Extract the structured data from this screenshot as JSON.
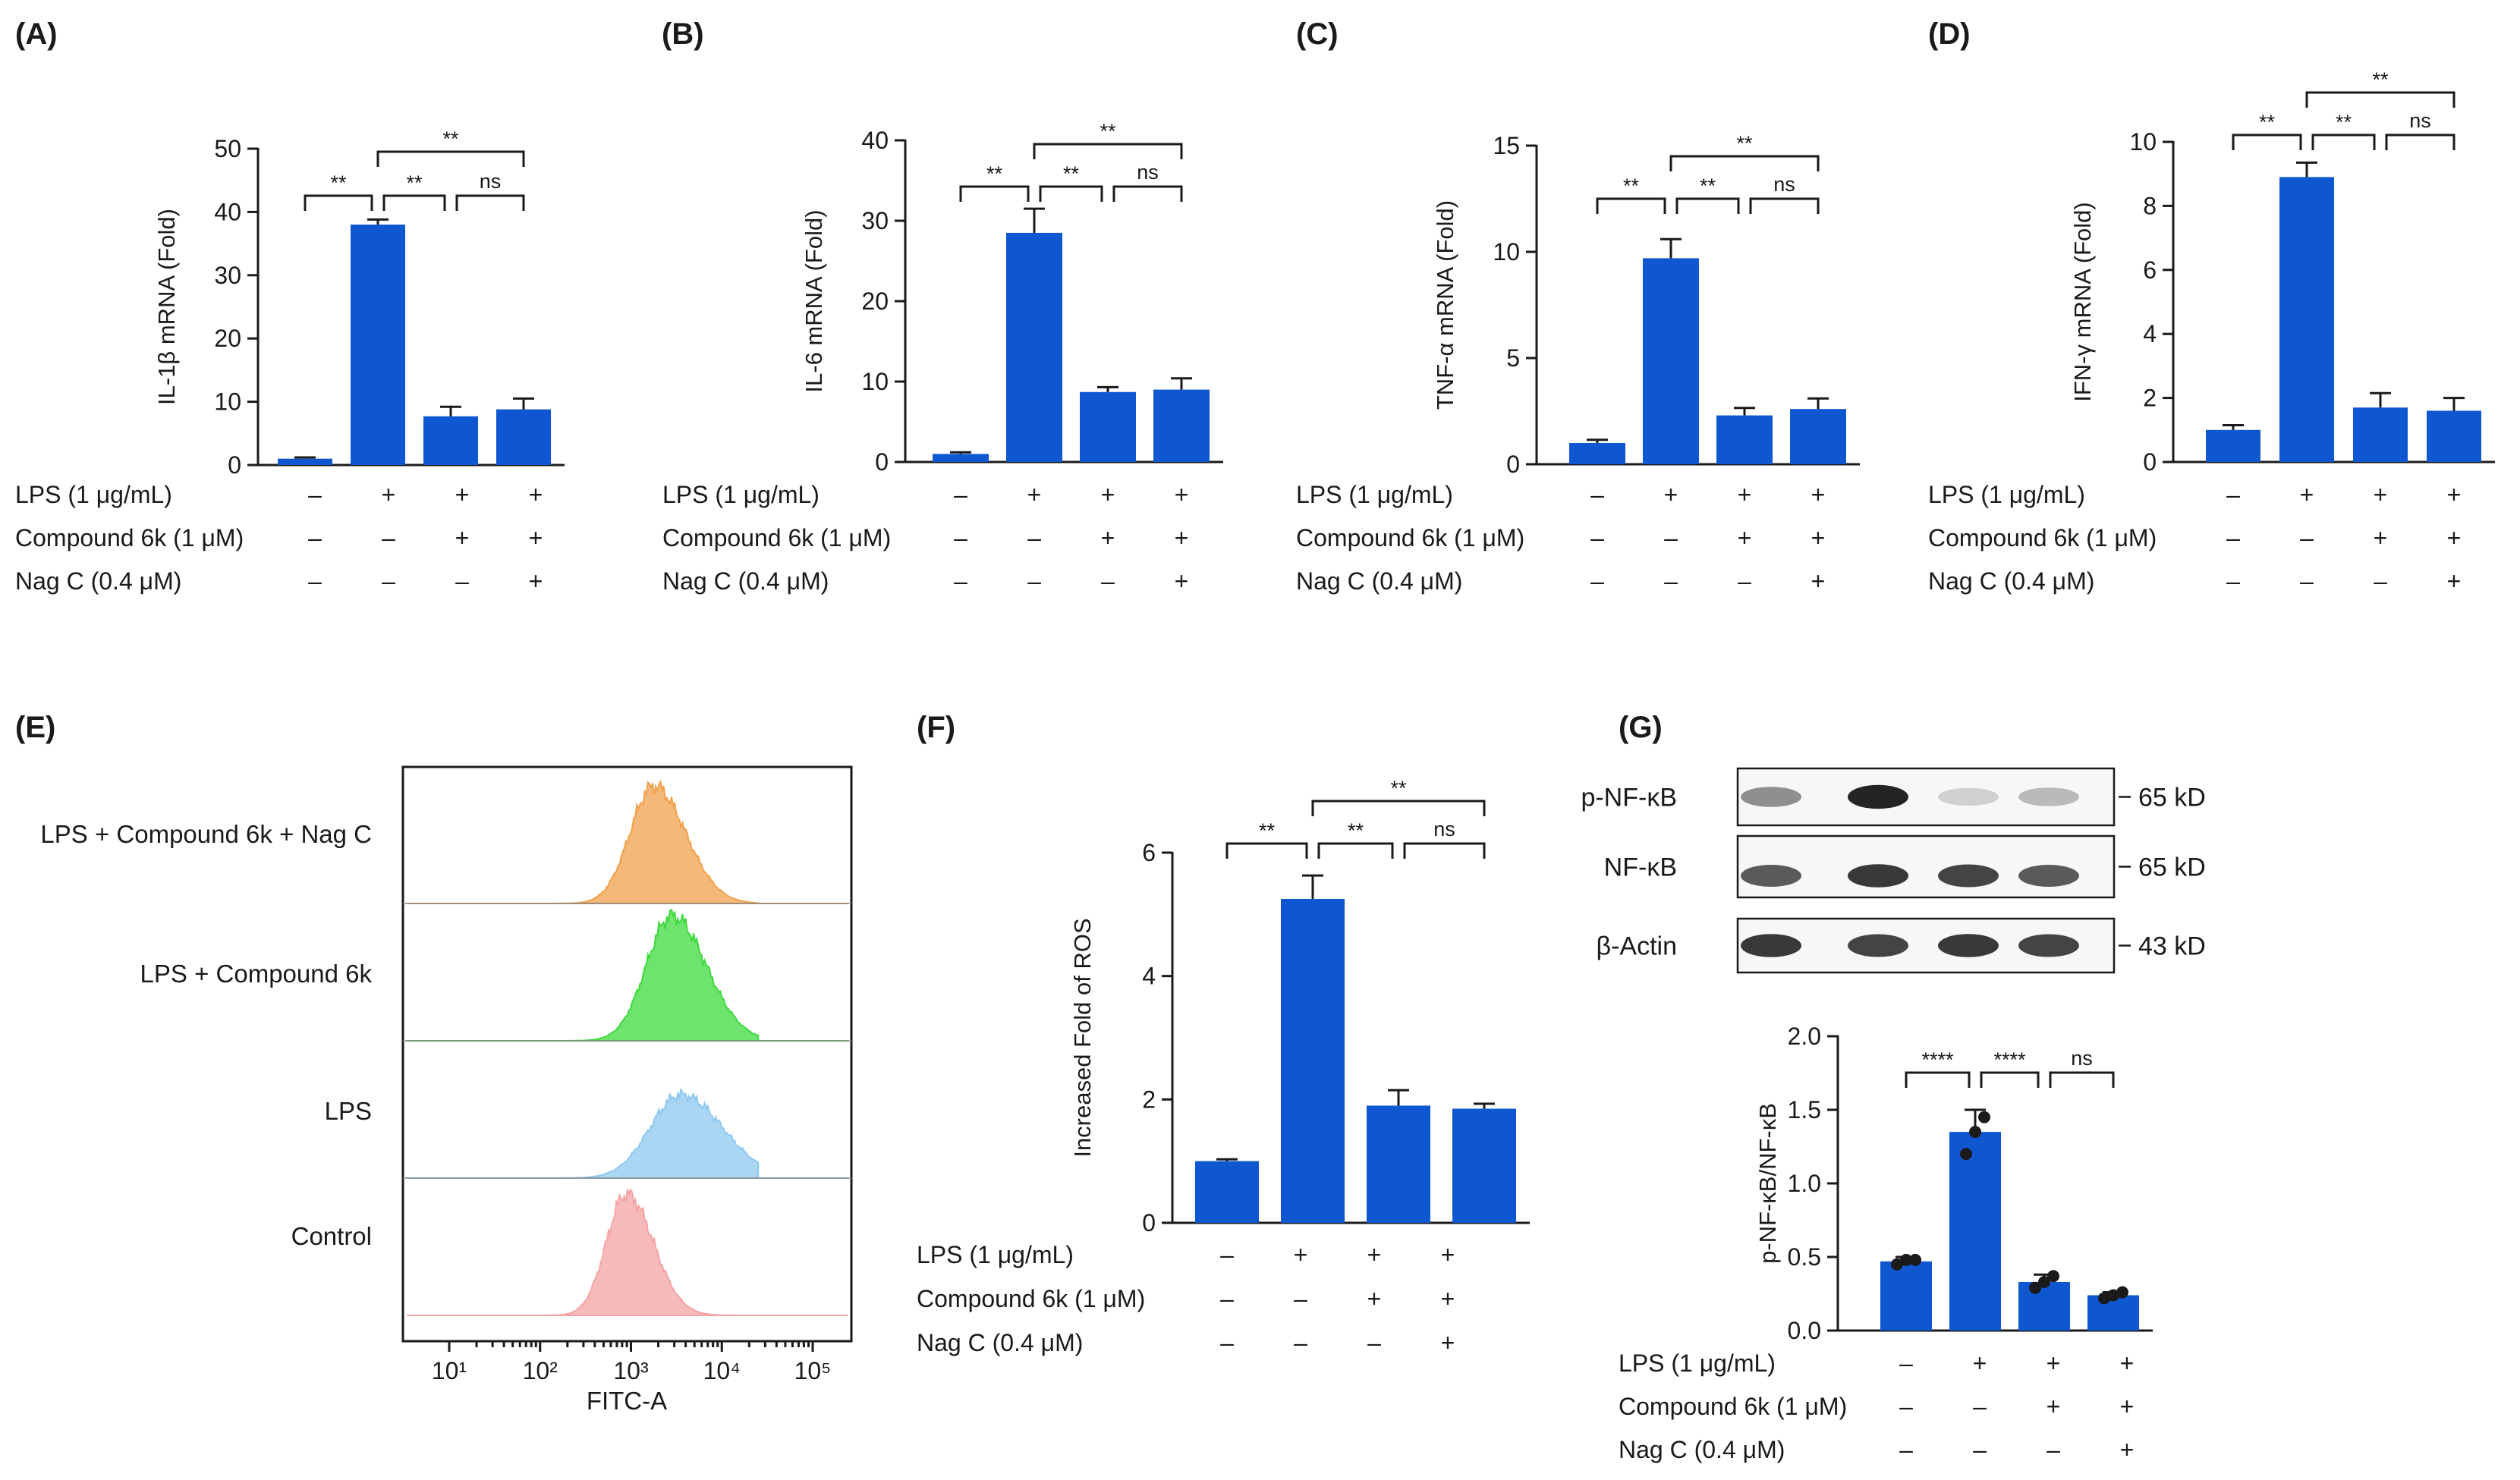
{
  "conditions": {
    "rows": [
      {
        "label": "LPS (1 μg/mL)",
        "marks": [
          "–",
          "+",
          "+",
          "+"
        ]
      },
      {
        "label": "Compound 6k (1 μM)",
        "marks": [
          "–",
          "–",
          "+",
          "+"
        ]
      },
      {
        "label": "Nag C (0.4 μM)",
        "marks": [
          "–",
          "–",
          "–",
          "+"
        ]
      }
    ]
  },
  "colors": {
    "bar": "#0f56d1",
    "orange_hist": "#f0a04b",
    "green_hist": "#3ed93e",
    "blue_hist": "#8ec8f0",
    "red_hist": "#f4a3a3"
  },
  "chart_data": [
    {
      "id": "A",
      "panel_label": "(A)",
      "type": "bar",
      "categories": [
        "1",
        "2",
        "3",
        "4"
      ],
      "values": [
        1.0,
        38.0,
        7.7,
        8.8
      ],
      "errors": [
        0.2,
        0.8,
        1.5,
        1.7
      ],
      "ylabel": "IL-1β mRNA (Fold)",
      "ylim": [
        0,
        50
      ],
      "yticks": [
        0,
        10,
        20,
        30,
        40,
        50
      ],
      "comparisons": [
        {
          "from": 1,
          "to": 2,
          "level": 0,
          "label": "**"
        },
        {
          "from": 2,
          "to": 3,
          "level": 0,
          "label": "**"
        },
        {
          "from": 3,
          "to": 4,
          "level": 0,
          "label": "ns"
        },
        {
          "from": 2,
          "to": 4,
          "level": 1,
          "label": "**"
        }
      ]
    },
    {
      "id": "B",
      "panel_label": "(B)",
      "type": "bar",
      "categories": [
        "1",
        "2",
        "3",
        "4"
      ],
      "values": [
        1.0,
        28.5,
        8.7,
        9.0
      ],
      "errors": [
        0.2,
        3.0,
        0.6,
        1.4
      ],
      "ylabel": "IL-6 mRNA (Fold)",
      "ylim": [
        0,
        40
      ],
      "yticks": [
        0,
        10,
        20,
        30,
        40
      ],
      "comparisons": [
        {
          "from": 1,
          "to": 2,
          "level": 0,
          "label": "**"
        },
        {
          "from": 2,
          "to": 3,
          "level": 0,
          "label": "**"
        },
        {
          "from": 3,
          "to": 4,
          "level": 0,
          "label": "ns"
        },
        {
          "from": 2,
          "to": 4,
          "level": 1,
          "label": "**"
        }
      ]
    },
    {
      "id": "C",
      "panel_label": "(C)",
      "type": "bar",
      "categories": [
        "1",
        "2",
        "3",
        "4"
      ],
      "values": [
        1.0,
        9.7,
        2.3,
        2.6
      ],
      "errors": [
        0.15,
        0.9,
        0.35,
        0.5
      ],
      "ylabel": "TNF-α mRNA (Fold)",
      "ylim": [
        0,
        15
      ],
      "yticks": [
        0,
        5,
        10,
        15
      ],
      "comparisons": [
        {
          "from": 1,
          "to": 2,
          "level": 0,
          "label": "**"
        },
        {
          "from": 2,
          "to": 3,
          "level": 0,
          "label": "**"
        },
        {
          "from": 3,
          "to": 4,
          "level": 0,
          "label": "ns"
        },
        {
          "from": 2,
          "to": 4,
          "level": 1,
          "label": "**"
        }
      ]
    },
    {
      "id": "D",
      "panel_label": "(D)",
      "type": "bar",
      "categories": [
        "1",
        "2",
        "3",
        "4"
      ],
      "values": [
        1.0,
        8.9,
        1.7,
        1.6
      ],
      "errors": [
        0.15,
        0.45,
        0.45,
        0.4
      ],
      "ylabel": "IFN-γ mRNA (Fold)",
      "ylim": [
        0,
        10
      ],
      "yticks": [
        0,
        2,
        4,
        6,
        8,
        10
      ],
      "comparisons": [
        {
          "from": 1,
          "to": 2,
          "level": 0,
          "label": "**"
        },
        {
          "from": 2,
          "to": 3,
          "level": 0,
          "label": "**"
        },
        {
          "from": 3,
          "to": 4,
          "level": 0,
          "label": "ns"
        },
        {
          "from": 2,
          "to": 4,
          "level": 1,
          "label": "**"
        }
      ]
    },
    {
      "id": "F",
      "panel_label": "(F)",
      "type": "bar",
      "categories": [
        "1",
        "2",
        "3",
        "4"
      ],
      "values": [
        1.0,
        5.25,
        1.9,
        1.85
      ],
      "errors": [
        0.03,
        0.38,
        0.25,
        0.08
      ],
      "ylabel": "Increased Fold of ROS",
      "ylim": [
        0,
        6
      ],
      "yticks": [
        0,
        2,
        4,
        6
      ],
      "comparisons": [
        {
          "from": 1,
          "to": 2,
          "level": 0,
          "label": "**"
        },
        {
          "from": 2,
          "to": 3,
          "level": 0,
          "label": "**"
        },
        {
          "from": 3,
          "to": 4,
          "level": 0,
          "label": "ns"
        },
        {
          "from": 2,
          "to": 4,
          "level": 1,
          "label": "**"
        }
      ]
    },
    {
      "id": "G",
      "panel_label": "(G)",
      "type": "bar",
      "categories": [
        "1",
        "2",
        "3",
        "4"
      ],
      "values": [
        0.47,
        1.35,
        0.33,
        0.24
      ],
      "errors": [
        0.03,
        0.15,
        0.05,
        0.02
      ],
      "points": [
        [
          0.45,
          0.48,
          0.48
        ],
        [
          1.2,
          1.35,
          1.45
        ],
        [
          0.29,
          0.33,
          0.37
        ],
        [
          0.22,
          0.24,
          0.26
        ]
      ],
      "ylabel": "p-NF-κB/NF-κB",
      "ylim": [
        0,
        2.0
      ],
      "yticks": [
        "0.0",
        "0.5",
        "1.0",
        "1.5",
        "2.0"
      ],
      "comparisons": [
        {
          "from": 1,
          "to": 2,
          "level": 0,
          "label": "****"
        },
        {
          "from": 2,
          "to": 3,
          "level": 0,
          "label": "****"
        },
        {
          "from": 3,
          "to": 4,
          "level": 0,
          "label": "ns"
        }
      ]
    },
    {
      "id": "E",
      "panel_label": "(E)",
      "type": "histogram",
      "xlabel": "FITC-A",
      "x_scale": "log",
      "xticks": [
        "10¹",
        "10²",
        "10³",
        "10⁴",
        "10⁵"
      ],
      "series": [
        {
          "name": "LPS + Compound 6k + Nag C",
          "peak_log10": 3.25,
          "spread": 0.26
        },
        {
          "name": "LPS + Compound 6k",
          "peak_log10": 3.45,
          "spread": 0.28
        },
        {
          "name": "LPS",
          "peak_log10": 3.55,
          "spread": 0.34
        },
        {
          "name": "Control",
          "peak_log10": 2.95,
          "spread": 0.22
        }
      ]
    }
  ],
  "western_blot": {
    "rows": [
      {
        "label": "p-NF-κB",
        "size": "65 kD",
        "intensities": [
          0.45,
          0.95,
          0.15,
          0.25
        ]
      },
      {
        "label": "NF-κB",
        "size": "65 kD",
        "intensities": [
          0.7,
          0.85,
          0.8,
          0.7
        ]
      },
      {
        "label": "β-Actin",
        "size": "43 kD",
        "intensities": [
          0.85,
          0.8,
          0.85,
          0.8
        ]
      }
    ]
  }
}
